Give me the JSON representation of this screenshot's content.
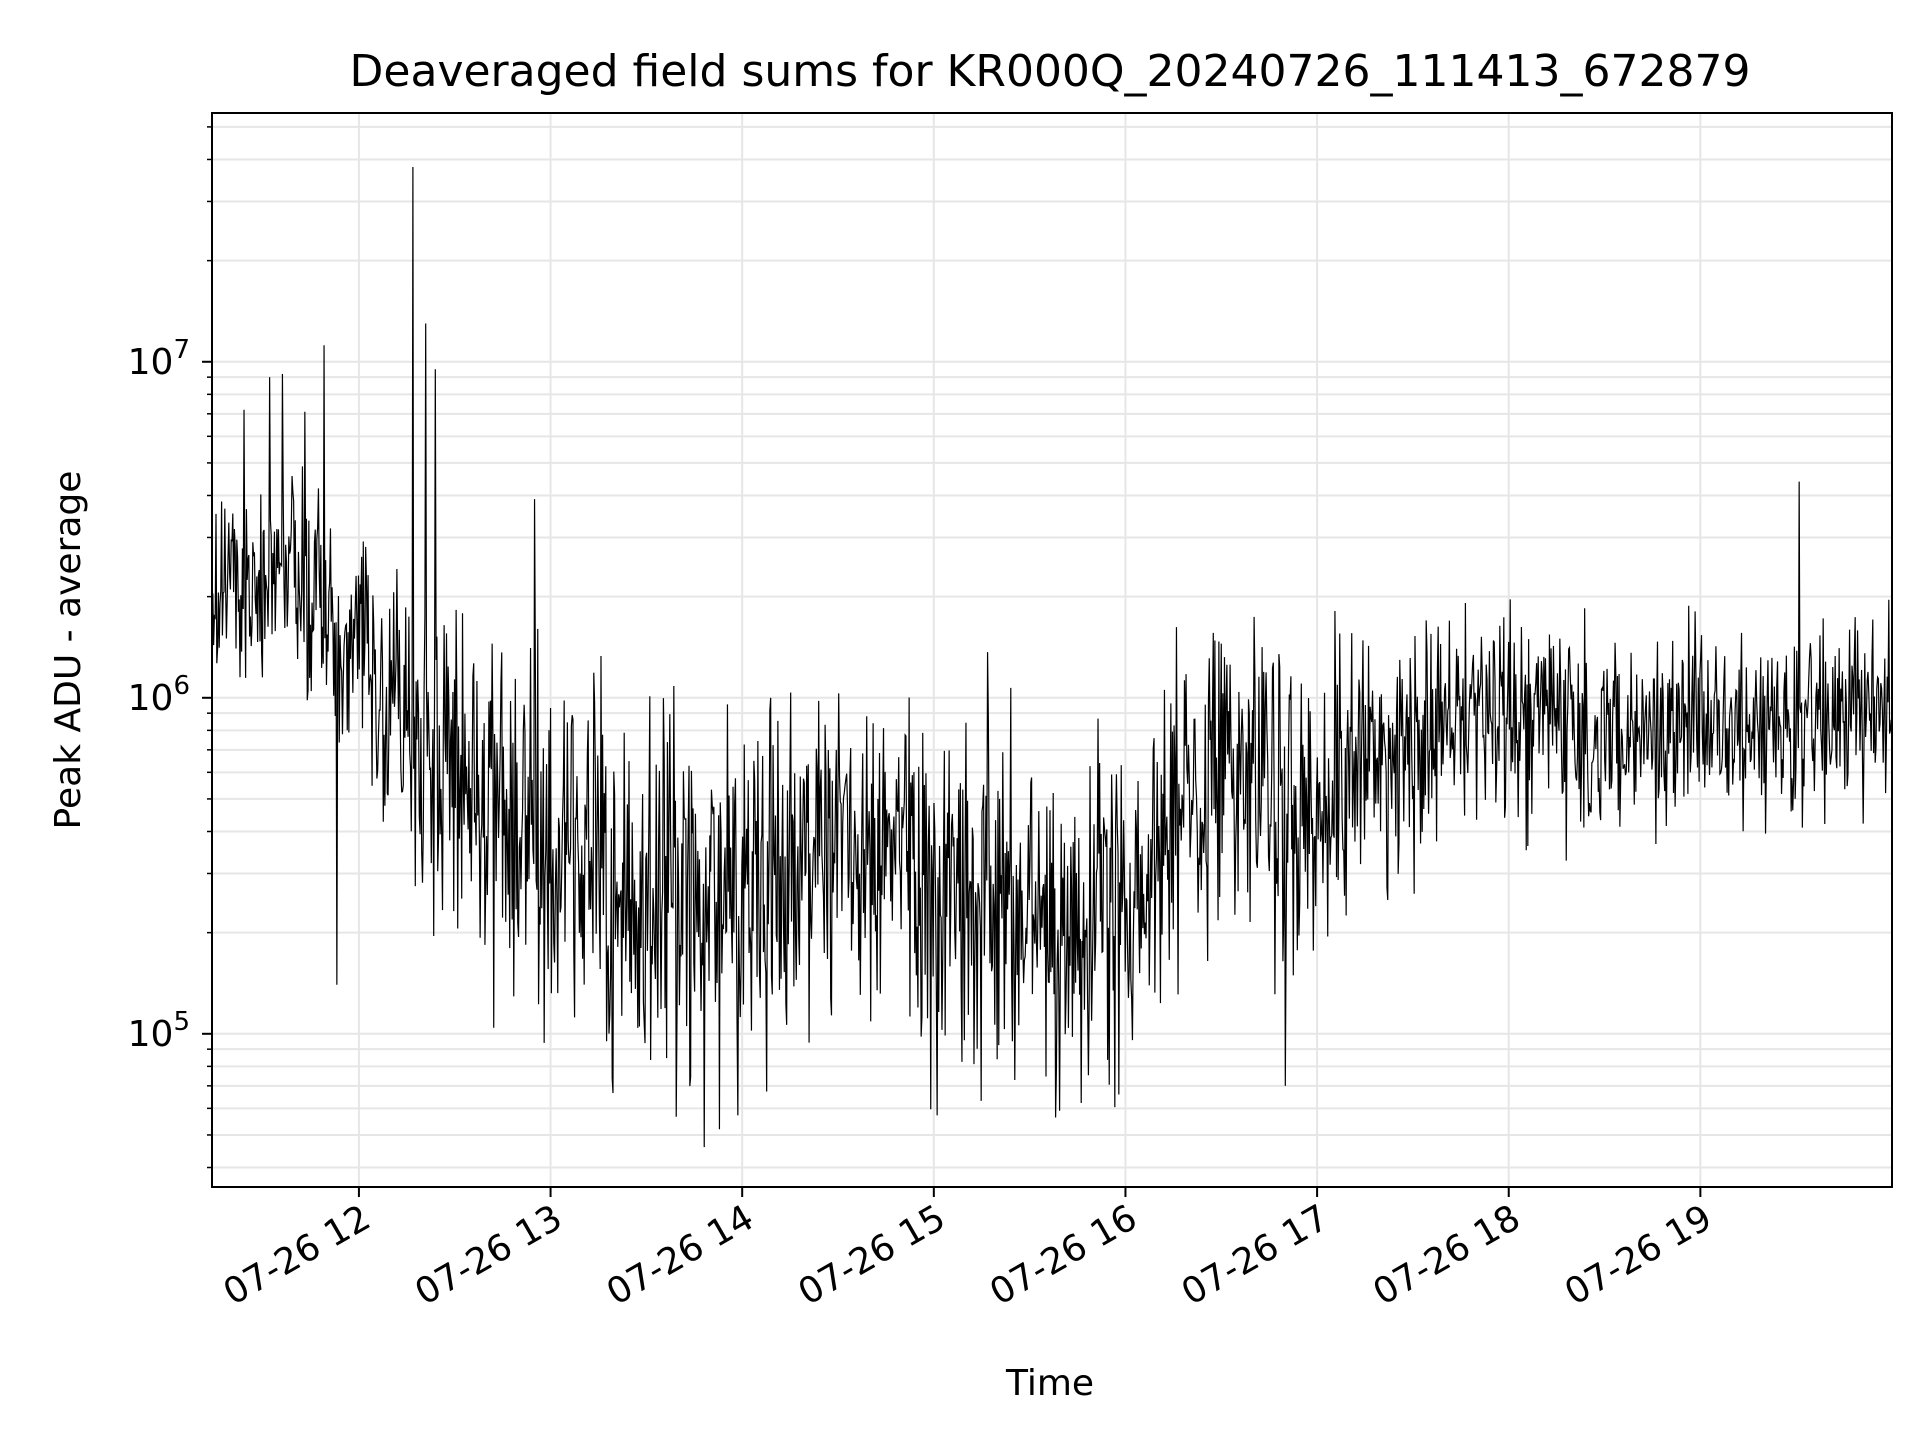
{
  "chart_data": {
    "type": "line",
    "title": "Deaveraged field sums for KR000Q_20240726_111413_672879",
    "xlabel": "Time",
    "ylabel": "Peak ADU - average",
    "xscale": "time",
    "yscale": "log",
    "xlim": [
      "2024-07-26 11:14",
      "2024-07-26 20:00"
    ],
    "ylim": [
      35000,
      55000000
    ],
    "grid": true,
    "legend": "none",
    "line_color": "#000000",
    "x_ticks": [
      {
        "value": "2024-07-26 12:00",
        "label": "07-26 12"
      },
      {
        "value": "2024-07-26 13:00",
        "label": "07-26 13"
      },
      {
        "value": "2024-07-26 14:00",
        "label": "07-26 14"
      },
      {
        "value": "2024-07-26 15:00",
        "label": "07-26 15"
      },
      {
        "value": "2024-07-26 16:00",
        "label": "07-26 16"
      },
      {
        "value": "2024-07-26 17:00",
        "label": "07-26 17"
      },
      {
        "value": "2024-07-26 18:00",
        "label": "07-26 18"
      },
      {
        "value": "2024-07-26 19:00",
        "label": "07-26 19"
      }
    ],
    "y_ticks": [
      {
        "value": 100000,
        "base": "10",
        "exp": "5"
      },
      {
        "value": 1000000,
        "base": "10",
        "exp": "6"
      },
      {
        "value": 10000000,
        "base": "10",
        "exp": "7"
      }
    ],
    "series": [
      {
        "x": [
          "2024-07-26 11:14",
          "2024-07-26 11:20",
          "2024-07-26 11:26",
          "2024-07-26 11:32",
          "2024-07-26 11:38",
          "2024-07-26 11:44",
          "2024-07-26 11:50",
          "2024-07-26 11:56",
          "2024-07-26 12:02",
          "2024-07-26 12:08",
          "2024-07-26 12:14",
          "2024-07-26 12:20",
          "2024-07-26 12:26",
          "2024-07-26 12:32",
          "2024-07-26 12:38",
          "2024-07-26 12:44",
          "2024-07-26 12:50",
          "2024-07-26 12:56",
          "2024-07-26 13:02",
          "2024-07-26 13:08",
          "2024-07-26 13:14",
          "2024-07-26 13:20",
          "2024-07-26 13:26",
          "2024-07-26 13:32",
          "2024-07-26 13:38",
          "2024-07-26 13:44",
          "2024-07-26 13:50",
          "2024-07-26 13:56",
          "2024-07-26 14:02",
          "2024-07-26 14:08",
          "2024-07-26 14:14",
          "2024-07-26 14:20",
          "2024-07-26 14:26",
          "2024-07-26 14:32",
          "2024-07-26 14:38",
          "2024-07-26 14:44",
          "2024-07-26 14:50",
          "2024-07-26 14:56",
          "2024-07-26 15:02",
          "2024-07-26 15:08",
          "2024-07-26 15:14",
          "2024-07-26 15:20",
          "2024-07-26 15:26",
          "2024-07-26 15:32",
          "2024-07-26 15:38",
          "2024-07-26 15:44",
          "2024-07-26 15:50",
          "2024-07-26 15:56",
          "2024-07-26 16:02",
          "2024-07-26 16:08",
          "2024-07-26 16:14",
          "2024-07-26 16:20",
          "2024-07-26 16:26",
          "2024-07-26 16:32",
          "2024-07-26 16:38",
          "2024-07-26 16:44",
          "2024-07-26 16:50",
          "2024-07-26 16:56",
          "2024-07-26 17:02",
          "2024-07-26 17:08",
          "2024-07-26 17:14",
          "2024-07-26 17:20",
          "2024-07-26 17:26",
          "2024-07-26 17:32",
          "2024-07-26 17:38",
          "2024-07-26 17:44",
          "2024-07-26 17:50",
          "2024-07-26 17:56",
          "2024-07-26 18:02",
          "2024-07-26 18:08",
          "2024-07-26 18:14",
          "2024-07-26 18:20",
          "2024-07-26 18:26",
          "2024-07-26 18:32",
          "2024-07-26 18:38",
          "2024-07-26 18:44",
          "2024-07-26 18:50",
          "2024-07-26 18:56",
          "2024-07-26 19:02",
          "2024-07-26 19:08",
          "2024-07-26 19:14",
          "2024-07-26 19:20",
          "2024-07-26 19:26",
          "2024-07-26 19:32",
          "2024-07-26 19:38",
          "2024-07-26 19:44",
          "2024-07-26 19:50",
          "2024-07-26 19:56"
        ],
        "y": [
          1800000,
          2500000,
          1900000,
          2200000,
          2600000,
          2000000,
          1700000,
          1400000,
          1500000,
          900000,
          1100000,
          600000,
          700000,
          500000,
          550000,
          450000,
          420000,
          380000,
          350000,
          320000,
          300000,
          280000,
          260000,
          240000,
          250000,
          230000,
          260000,
          280000,
          300000,
          290000,
          320000,
          350000,
          380000,
          400000,
          380000,
          360000,
          330000,
          300000,
          280000,
          260000,
          250000,
          240000,
          220000,
          210000,
          200000,
          190000,
          200000,
          210000,
          240000,
          300000,
          400000,
          520000,
          600000,
          620000,
          580000,
          520000,
          480000,
          450000,
          500000,
          560000,
          620000,
          680000,
          720000,
          760000,
          800000,
          840000,
          880000,
          900000,
          880000,
          860000,
          840000,
          820000,
          800000,
          790000,
          780000,
          770000,
          800000,
          820000,
          840000,
          860000,
          820000,
          780000,
          760000,
          800000,
          860000,
          920000,
          980000,
          1050000
        ],
        "amp": [
          0.45,
          0.45,
          0.5,
          0.5,
          0.5,
          0.5,
          0.5,
          0.5,
          0.6,
          0.75,
          0.8,
          0.85,
          0.9,
          0.9,
          0.9,
          0.9,
          0.9,
          0.9,
          0.9,
          0.9,
          0.95,
          1.0,
          1.0,
          1.0,
          1.0,
          1.0,
          1.0,
          1.0,
          1.0,
          1.0,
          0.95,
          0.9,
          0.9,
          0.9,
          0.9,
          0.9,
          0.9,
          0.9,
          0.9,
          0.9,
          0.9,
          0.9,
          0.9,
          0.9,
          0.9,
          0.9,
          0.9,
          0.9,
          0.9,
          0.85,
          0.8,
          0.8,
          0.8,
          0.8,
          0.8,
          0.8,
          0.8,
          0.8,
          0.75,
          0.7,
          0.7,
          0.65,
          0.6,
          0.6,
          0.6,
          0.55,
          0.55,
          0.55,
          0.55,
          0.55,
          0.55,
          0.55,
          0.55,
          0.55,
          0.5,
          0.5,
          0.5,
          0.5,
          0.5,
          0.5,
          0.5,
          0.5,
          0.5,
          0.5,
          0.5,
          0.5,
          0.5,
          0.5
        ],
        "spikes": [
          {
            "x": "2024-07-26 11:24",
            "y": 7200000
          },
          {
            "x": "2024-07-26 11:32",
            "y": 9000000
          },
          {
            "x": "2024-07-26 11:36",
            "y": 9200000
          },
          {
            "x": "2024-07-26 11:43",
            "y": 7100000
          },
          {
            "x": "2024-07-26 11:49",
            "y": 11200000
          },
          {
            "x": "2024-07-26 12:17",
            "y": 38000000
          },
          {
            "x": "2024-07-26 12:21",
            "y": 13000000
          },
          {
            "x": "2024-07-26 12:24",
            "y": 9500000
          },
          {
            "x": "2024-07-26 12:55",
            "y": 3900000
          },
          {
            "x": "2024-07-26 19:31",
            "y": 4400000
          },
          {
            "x": "2024-07-26 13:48",
            "y": 46000
          },
          {
            "x": "2024-07-26 13:53",
            "y": 52000
          },
          {
            "x": "2024-07-26 15:58",
            "y": 66000
          },
          {
            "x": "2024-07-26 16:50",
            "y": 70000
          },
          {
            "x": "2024-07-26 11:53",
            "y": 140000
          }
        ]
      }
    ]
  }
}
